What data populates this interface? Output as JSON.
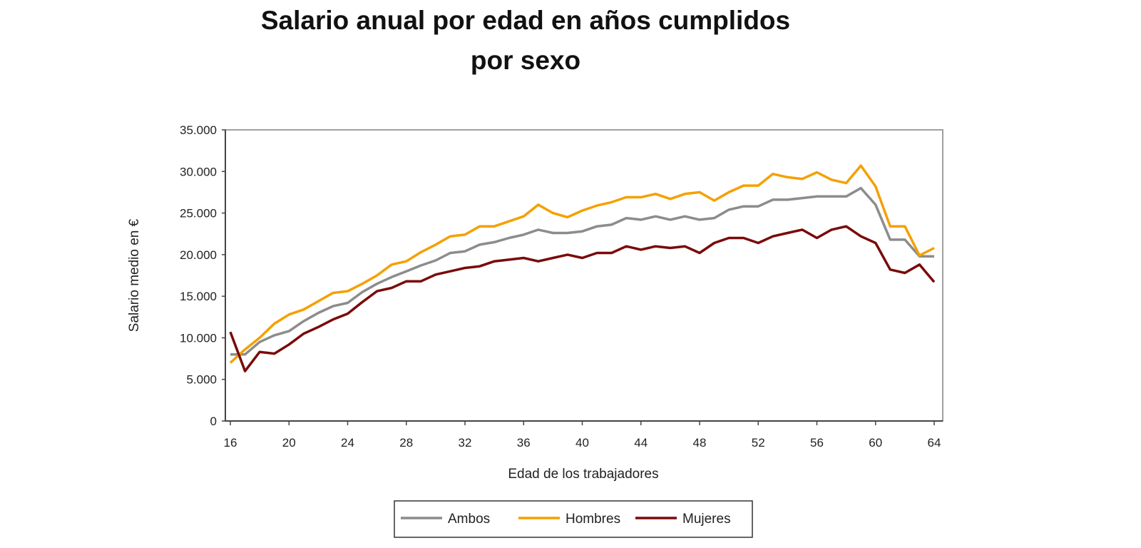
{
  "chart_data": {
    "type": "line",
    "title": [
      "Salario anual por edad en años cumplidos",
      "por sexo"
    ],
    "xlabel": "Edad de los trabajadores",
    "ylabel": "Salario medio en €",
    "ylim": [
      0,
      35000
    ],
    "xlim": [
      16,
      64
    ],
    "yticks": [
      "0",
      "5.000",
      "10.000",
      "15.000",
      "20.000",
      "25.000",
      "30.000",
      "35.000"
    ],
    "xticks": [
      "16",
      "20",
      "24",
      "28",
      "32",
      "36",
      "40",
      "44",
      "48",
      "52",
      "56",
      "60",
      "64"
    ],
    "grid": false,
    "legend": "bottom",
    "x": [
      16,
      17,
      18,
      19,
      20,
      21,
      22,
      23,
      24,
      25,
      26,
      27,
      28,
      29,
      30,
      31,
      32,
      33,
      34,
      35,
      36,
      37,
      38,
      39,
      40,
      41,
      42,
      43,
      44,
      45,
      46,
      47,
      48,
      49,
      50,
      51,
      52,
      53,
      54,
      55,
      56,
      57,
      58,
      59,
      60,
      61,
      62,
      63,
      64
    ],
    "series": [
      {
        "name": "Ambos",
        "color": "#8c8c8c",
        "values": [
          8000,
          8000,
          9500,
          10300,
          10800,
          12000,
          13000,
          13800,
          14200,
          15500,
          16500,
          17300,
          18000,
          18700,
          19300,
          20200,
          20400,
          21200,
          21500,
          22000,
          22400,
          23000,
          22600,
          22600,
          22800,
          23400,
          23600,
          24400,
          24200,
          24600,
          24200,
          24600,
          24200,
          24400,
          25400,
          25800,
          25800,
          26600,
          26600,
          26800,
          27000,
          27000,
          27000,
          28000,
          26000,
          21800,
          21800,
          19800,
          19800
        ]
      },
      {
        "name": "Hombres",
        "color": "#f5a000",
        "values": [
          7000,
          8600,
          10000,
          11700,
          12800,
          13400,
          14400,
          15400,
          15600,
          16500,
          17500,
          18800,
          19200,
          20300,
          21200,
          22200,
          22400,
          23400,
          23400,
          24000,
          24600,
          26000,
          25000,
          24500,
          25300,
          25900,
          26300,
          26900,
          26900,
          27300,
          26700,
          27300,
          27500,
          26500,
          27500,
          28300,
          28300,
          29700,
          29300,
          29100,
          29900,
          29000,
          28600,
          30700,
          28200,
          23400,
          23400,
          19900,
          20800
        ]
      },
      {
        "name": "Mujeres",
        "color": "#7a0a0a",
        "values": [
          10700,
          6000,
          8300,
          8100,
          9200,
          10500,
          11300,
          12200,
          12900,
          14300,
          15600,
          16000,
          16800,
          16800,
          17600,
          18000,
          18400,
          18600,
          19200,
          19400,
          19600,
          19200,
          19600,
          20000,
          19600,
          20200,
          20200,
          21000,
          20600,
          21000,
          20800,
          21000,
          20200,
          21400,
          22000,
          22000,
          21400,
          22200,
          22600,
          23000,
          22000,
          23000,
          23400,
          22200,
          21400,
          18200,
          17800,
          18800,
          16700
        ]
      }
    ]
  }
}
